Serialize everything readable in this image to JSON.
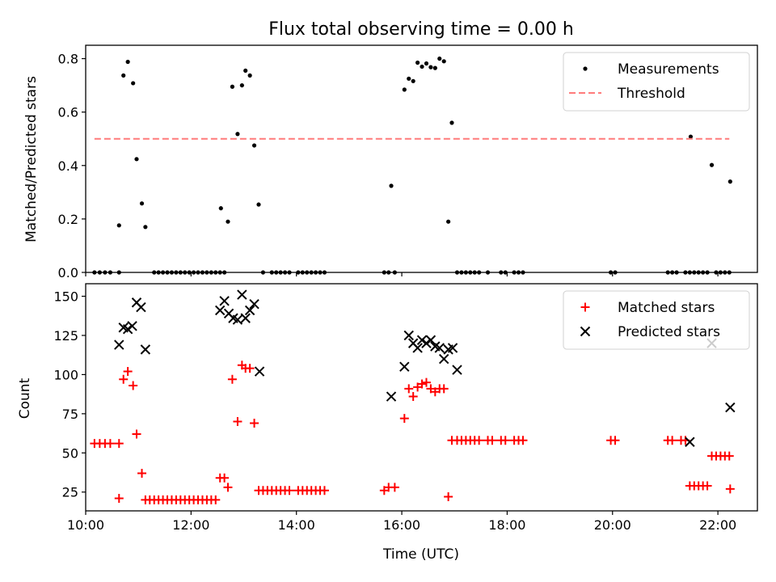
{
  "figure": {
    "title": "Flux total observing time = 0.00 h",
    "xlabel": "Time (UTC)"
  },
  "chart_data": [
    {
      "type": "scatter",
      "ylabel": "Matched/Predicted stars",
      "xlim": [
        "10:00",
        "22:45"
      ],
      "ylim": [
        0,
        0.85
      ],
      "x_ticks": [
        "10:00",
        "12:00",
        "14:00",
        "16:00",
        "18:00",
        "20:00",
        "22:00"
      ],
      "y_ticks": [
        "0.0",
        "0.2",
        "0.4",
        "0.6",
        "0.8"
      ],
      "legend_position": "upper right",
      "series": [
        {
          "name": "Measurements",
          "marker": "dot",
          "color": "#000000",
          "points": [
            [
              "10:10",
              0
            ],
            [
              "10:16",
              0
            ],
            [
              "10:22",
              0
            ],
            [
              "10:28",
              0
            ],
            [
              "10:38",
              0
            ],
            [
              "10:38",
              0.176
            ],
            [
              "10:43",
              0.737
            ],
            [
              "10:48",
              0.788
            ],
            [
              "10:54",
              0.708
            ],
            [
              "10:58",
              0.424
            ],
            [
              "11:04",
              0.258
            ],
            [
              "11:08",
              0.17
            ],
            [
              "11:18",
              0
            ],
            [
              "11:23",
              0
            ],
            [
              "11:28",
              0
            ],
            [
              "11:33",
              0
            ],
            [
              "11:38",
              0
            ],
            [
              "11:43",
              0
            ],
            [
              "11:48",
              0
            ],
            [
              "11:53",
              0
            ],
            [
              "11:58",
              0
            ],
            [
              "12:03",
              0
            ],
            [
              "12:08",
              0
            ],
            [
              "12:13",
              0
            ],
            [
              "12:18",
              0
            ],
            [
              "12:23",
              0
            ],
            [
              "12:28",
              0
            ],
            [
              "12:33",
              0
            ],
            [
              "12:34",
              0.24
            ],
            [
              "12:38",
              0
            ],
            [
              "12:42",
              0.19
            ],
            [
              "12:47",
              0.695
            ],
            [
              "12:53",
              0.518
            ],
            [
              "12:58",
              0.7
            ],
            [
              "13:02",
              0.755
            ],
            [
              "13:07",
              0.737
            ],
            [
              "13:12",
              0.475
            ],
            [
              "13:17",
              0.254
            ],
            [
              "13:22",
              0
            ],
            [
              "13:32",
              0
            ],
            [
              "13:37",
              0
            ],
            [
              "13:42",
              0
            ],
            [
              "13:47",
              0
            ],
            [
              "13:52",
              0
            ],
            [
              "14:02",
              0
            ],
            [
              "14:07",
              0
            ],
            [
              "14:12",
              0
            ],
            [
              "14:17",
              0
            ],
            [
              "14:22",
              0
            ],
            [
              "14:27",
              0
            ],
            [
              "14:32",
              0
            ],
            [
              "15:40",
              0
            ],
            [
              "15:45",
              0
            ],
            [
              "15:48",
              0.324
            ],
            [
              "15:52",
              0
            ],
            [
              "16:03",
              0.684
            ],
            [
              "16:08",
              0.725
            ],
            [
              "16:13",
              0.716
            ],
            [
              "16:18",
              0.785
            ],
            [
              "16:23",
              0.77
            ],
            [
              "16:28",
              0.782
            ],
            [
              "16:33",
              0.768
            ],
            [
              "16:38",
              0.765
            ],
            [
              "16:43",
              0.8
            ],
            [
              "16:48",
              0.79
            ],
            [
              "16:53",
              0.19
            ],
            [
              "16:57",
              0.56
            ],
            [
              "17:03",
              0
            ],
            [
              "17:08",
              0
            ],
            [
              "17:13",
              0
            ],
            [
              "17:18",
              0
            ],
            [
              "17:23",
              0
            ],
            [
              "17:28",
              0
            ],
            [
              "17:38",
              0
            ],
            [
              "17:53",
              0
            ],
            [
              "17:58",
              0
            ],
            [
              "18:08",
              0
            ],
            [
              "18:13",
              0
            ],
            [
              "18:18",
              0
            ],
            [
              "19:58",
              0
            ],
            [
              "20:03",
              0
            ],
            [
              "21:03",
              0
            ],
            [
              "21:08",
              0
            ],
            [
              "21:13",
              0
            ],
            [
              "21:23",
              0
            ],
            [
              "21:28",
              0
            ],
            [
              "21:29",
              0.508
            ],
            [
              "21:33",
              0
            ],
            [
              "21:38",
              0
            ],
            [
              "21:43",
              0
            ],
            [
              "21:48",
              0
            ],
            [
              "21:53",
              0.402
            ],
            [
              "21:58",
              0
            ],
            [
              "22:03",
              0
            ],
            [
              "22:08",
              0
            ],
            [
              "22:13",
              0
            ],
            [
              "22:14",
              0.34
            ]
          ]
        },
        {
          "name": "Threshold",
          "marker": "dashed-line",
          "color": "#ff7b7b",
          "points": [
            [
              "10:10",
              0.5
            ],
            [
              "22:13",
              0.5
            ]
          ]
        }
      ]
    },
    {
      "type": "scatter",
      "ylabel": "Count",
      "xlim": [
        "10:00",
        "22:45"
      ],
      "ylim": [
        13,
        158
      ],
      "x_ticks": [
        "10:00",
        "12:00",
        "14:00",
        "16:00",
        "18:00",
        "20:00",
        "22:00"
      ],
      "y_ticks": [
        "25",
        "50",
        "75",
        "100",
        "125",
        "150"
      ],
      "legend_position": "upper right",
      "series": [
        {
          "name": "Matched stars",
          "marker": "plus",
          "color": "#ff0000",
          "points": [
            [
              "10:10",
              56
            ],
            [
              "10:16",
              56
            ],
            [
              "10:22",
              56
            ],
            [
              "10:28",
              56
            ],
            [
              "10:38",
              56
            ],
            [
              "10:38",
              21
            ],
            [
              "10:43",
              97
            ],
            [
              "10:48",
              102
            ],
            [
              "10:54",
              93
            ],
            [
              "10:58",
              62
            ],
            [
              "11:04",
              37
            ],
            [
              "11:08",
              20
            ],
            [
              "11:13",
              20
            ],
            [
              "11:18",
              20
            ],
            [
              "11:23",
              20
            ],
            [
              "11:28",
              20
            ],
            [
              "11:33",
              20
            ],
            [
              "11:38",
              20
            ],
            [
              "11:43",
              20
            ],
            [
              "11:48",
              20
            ],
            [
              "11:53",
              20
            ],
            [
              "11:58",
              20
            ],
            [
              "12:03",
              20
            ],
            [
              "12:08",
              20
            ],
            [
              "12:13",
              20
            ],
            [
              "12:18",
              20
            ],
            [
              "12:23",
              20
            ],
            [
              "12:28",
              20
            ],
            [
              "12:33",
              34
            ],
            [
              "12:38",
              34
            ],
            [
              "12:42",
              28
            ],
            [
              "12:47",
              97
            ],
            [
              "12:53",
              70
            ],
            [
              "12:58",
              106
            ],
            [
              "13:02",
              104
            ],
            [
              "13:07",
              104
            ],
            [
              "13:12",
              69
            ],
            [
              "13:17",
              26
            ],
            [
              "13:22",
              26
            ],
            [
              "13:27",
              26
            ],
            [
              "13:32",
              26
            ],
            [
              "13:37",
              26
            ],
            [
              "13:42",
              26
            ],
            [
              "13:47",
              26
            ],
            [
              "13:52",
              26
            ],
            [
              "14:02",
              26
            ],
            [
              "14:07",
              26
            ],
            [
              "14:12",
              26
            ],
            [
              "14:17",
              26
            ],
            [
              "14:22",
              26
            ],
            [
              "14:27",
              26
            ],
            [
              "14:32",
              26
            ],
            [
              "15:40",
              26
            ],
            [
              "15:45",
              28
            ],
            [
              "15:52",
              28
            ],
            [
              "16:03",
              72
            ],
            [
              "16:08",
              91
            ],
            [
              "16:13",
              86
            ],
            [
              "16:18",
              92
            ],
            [
              "16:23",
              94
            ],
            [
              "16:28",
              95
            ],
            [
              "16:33",
              91
            ],
            [
              "16:38",
              89
            ],
            [
              "16:43",
              91
            ],
            [
              "16:48",
              91
            ],
            [
              "16:53",
              22
            ],
            [
              "16:57",
              58
            ],
            [
              "17:03",
              58
            ],
            [
              "17:08",
              58
            ],
            [
              "17:13",
              58
            ],
            [
              "17:18",
              58
            ],
            [
              "17:23",
              58
            ],
            [
              "17:28",
              58
            ],
            [
              "17:38",
              58
            ],
            [
              "17:43",
              58
            ],
            [
              "17:53",
              58
            ],
            [
              "17:58",
              58
            ],
            [
              "18:08",
              58
            ],
            [
              "18:13",
              58
            ],
            [
              "18:18",
              58
            ],
            [
              "19:58",
              58
            ],
            [
              "20:03",
              58
            ],
            [
              "21:03",
              58
            ],
            [
              "21:08",
              58
            ],
            [
              "21:18",
              58
            ],
            [
              "21:23",
              58
            ],
            [
              "21:28",
              29
            ],
            [
              "21:33",
              29
            ],
            [
              "21:38",
              29
            ],
            [
              "21:43",
              29
            ],
            [
              "21:48",
              29
            ],
            [
              "21:53",
              48
            ],
            [
              "21:58",
              48
            ],
            [
              "22:03",
              48
            ],
            [
              "22:08",
              48
            ],
            [
              "22:13",
              48
            ],
            [
              "22:14",
              27
            ]
          ]
        },
        {
          "name": "Predicted stars",
          "marker": "x",
          "color": "#000000",
          "points": [
            [
              "10:38",
              119
            ],
            [
              "10:43",
              130
            ],
            [
              "10:48",
              129
            ],
            [
              "10:53",
              131
            ],
            [
              "10:58",
              146
            ],
            [
              "11:03",
              143
            ],
            [
              "11:08",
              116
            ],
            [
              "12:33",
              141
            ],
            [
              "12:38",
              147
            ],
            [
              "12:43",
              139
            ],
            [
              "12:48",
              136
            ],
            [
              "12:58",
              151
            ],
            [
              "12:53",
              135
            ],
            [
              "13:02",
              136
            ],
            [
              "13:07",
              141
            ],
            [
              "13:12",
              145
            ],
            [
              "13:18",
              102
            ],
            [
              "15:48",
              86
            ],
            [
              "16:03",
              105
            ],
            [
              "16:08",
              125
            ],
            [
              "16:13",
              120
            ],
            [
              "16:18",
              117
            ],
            [
              "16:23",
              122
            ],
            [
              "16:28",
              120
            ],
            [
              "16:33",
              122
            ],
            [
              "16:38",
              118
            ],
            [
              "16:43",
              117
            ],
            [
              "16:48",
              110
            ],
            [
              "16:53",
              116
            ],
            [
              "16:58",
              117
            ],
            [
              "17:03",
              103
            ],
            [
              "21:28",
              57
            ],
            [
              "21:53",
              120
            ],
            [
              "22:14",
              79
            ]
          ]
        }
      ]
    }
  ]
}
